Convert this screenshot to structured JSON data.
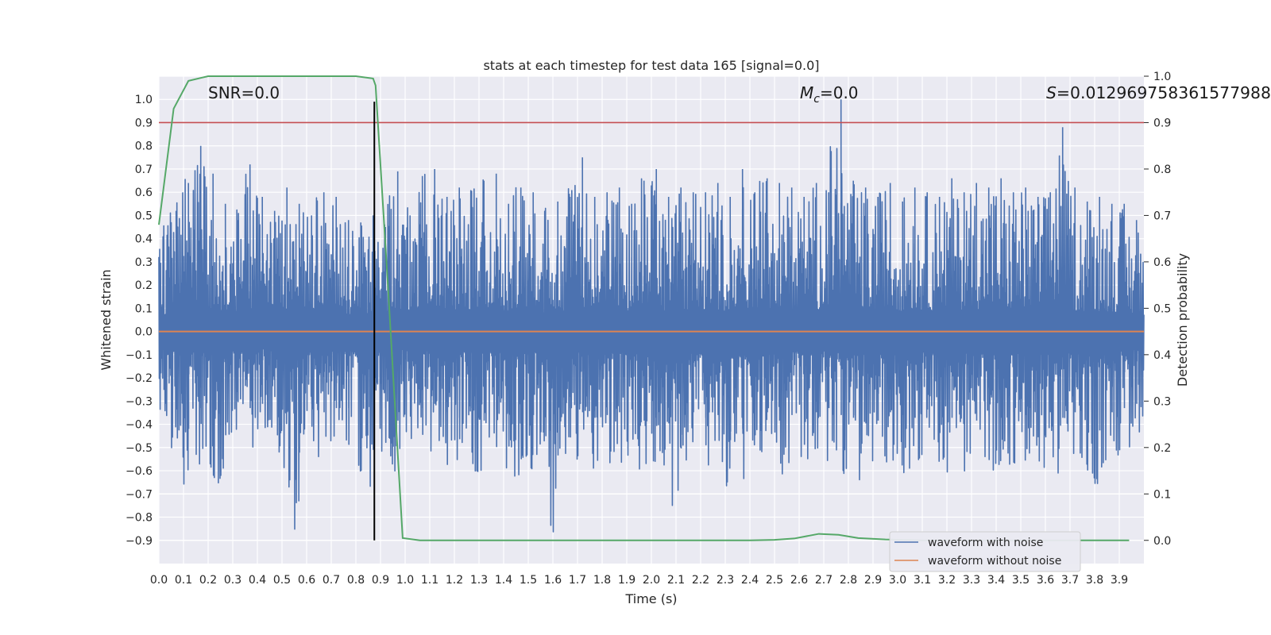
{
  "chart_data": {
    "type": "line",
    "title": "stats at each timestep for test data 165 [signal=0.0]",
    "xlabel": "Time (s)",
    "ylabel": "Whitened strain",
    "y2label": "Detection probability",
    "xlim": [
      0.0,
      4.0
    ],
    "ylim": [
      -1.0,
      1.1
    ],
    "y2lim": [
      -0.05,
      1.0
    ],
    "xticks": [
      "0.0",
      "0.1",
      "0.2",
      "0.3",
      "0.4",
      "0.5",
      "0.6",
      "0.7",
      "0.8",
      "0.9",
      "1.0",
      "1.1",
      "1.2",
      "1.3",
      "1.4",
      "1.5",
      "1.6",
      "1.7",
      "1.8",
      "1.9",
      "2.0",
      "2.1",
      "2.2",
      "2.3",
      "2.4",
      "2.5",
      "2.6",
      "2.7",
      "2.8",
      "2.9",
      "3.0",
      "3.1",
      "3.2",
      "3.3",
      "3.4",
      "3.5",
      "3.6",
      "3.7",
      "3.8",
      "3.9"
    ],
    "yticks": [
      "−0.9",
      "−0.8",
      "−0.7",
      "−0.6",
      "−0.5",
      "−0.4",
      "−0.3",
      "−0.2",
      "−0.1",
      "0.0",
      "0.1",
      "0.2",
      "0.3",
      "0.4",
      "0.5",
      "0.6",
      "0.7",
      "0.8",
      "0.9",
      "1.0"
    ],
    "y2ticks": [
      "0.0",
      "0.1",
      "0.2",
      "0.3",
      "0.4",
      "0.5",
      "0.6",
      "0.7",
      "0.8",
      "0.9",
      "1.0"
    ],
    "grid": true,
    "legend_placement": "lower-right",
    "annotations": {
      "snr": "SNR=0.0",
      "mc_symbol": "M",
      "mc_sub": "c",
      "mc_value": "=0.0",
      "s_symbol": "S",
      "s_value": "=0.012969758361577988"
    },
    "series": [
      {
        "name": "waveform with noise",
        "color": "#4c72b0",
        "note_sample": "dense noise trace, roughly within ±0.5 with spikes",
        "x": [
          0.0,
          0.05,
          0.1,
          0.15,
          0.2,
          0.25,
          0.3,
          0.35,
          0.4,
          0.45,
          0.5,
          0.55,
          0.6,
          0.65,
          0.7,
          0.75,
          0.8,
          0.85,
          0.9,
          0.95,
          1.0,
          1.05,
          1.1,
          1.15,
          1.2,
          1.25,
          1.3,
          1.35,
          1.4,
          1.45,
          1.5,
          1.55,
          1.6,
          1.65,
          1.7,
          1.75,
          1.8,
          1.85,
          1.9,
          1.95,
          2.0,
          2.05,
          2.1,
          2.15,
          2.2,
          2.25,
          2.3,
          2.35,
          2.4,
          2.45,
          2.5,
          2.55,
          2.6,
          2.65,
          2.7,
          2.75,
          2.8,
          2.85,
          2.9,
          2.95,
          3.0,
          3.05,
          3.1,
          3.15,
          3.2,
          3.25,
          3.3,
          3.35,
          3.4,
          3.45,
          3.5,
          3.55,
          3.6,
          3.65,
          3.7,
          3.75,
          3.8,
          3.85,
          3.9,
          3.95
        ],
        "y_max": [
          0.44,
          0.52,
          0.64,
          0.8,
          0.68,
          0.55,
          0.48,
          0.72,
          0.58,
          0.52,
          0.62,
          0.55,
          0.5,
          0.6,
          0.58,
          0.48,
          0.47,
          0.5,
          0.45,
          0.69,
          0.5,
          0.67,
          0.7,
          0.58,
          0.62,
          0.6,
          0.65,
          0.68,
          0.55,
          0.62,
          0.6,
          0.52,
          0.56,
          0.58,
          0.75,
          0.58,
          0.6,
          0.62,
          0.55,
          0.65,
          0.7,
          0.58,
          0.62,
          0.6,
          0.6,
          0.64,
          0.58,
          0.7,
          0.6,
          0.66,
          0.64,
          0.62,
          0.58,
          0.64,
          0.6,
          1.0,
          0.65,
          0.62,
          0.58,
          0.64,
          0.56,
          0.62,
          0.6,
          0.58,
          0.66,
          0.6,
          0.64,
          0.62,
          0.66,
          0.6,
          0.62,
          0.58,
          0.6,
          0.88,
          0.62,
          0.56,
          0.58,
          0.55,
          0.55,
          0.48
        ],
        "y_min": [
          -0.42,
          -0.52,
          -0.7,
          -0.55,
          -0.62,
          -0.67,
          -0.5,
          -0.55,
          -0.52,
          -0.47,
          -0.55,
          -0.87,
          -0.52,
          -0.58,
          -0.55,
          -0.55,
          -0.52,
          -0.85,
          -0.55,
          -0.64,
          -0.45,
          -0.55,
          -0.52,
          -0.58,
          -0.62,
          -0.55,
          -0.64,
          -0.56,
          -0.58,
          -0.66,
          -0.6,
          -0.58,
          -0.89,
          -0.55,
          -0.58,
          -0.62,
          -0.6,
          -0.58,
          -0.56,
          -0.64,
          -0.62,
          -0.66,
          -0.84,
          -0.58,
          -0.62,
          -0.6,
          -0.78,
          -0.7,
          -0.62,
          -0.58,
          -0.64,
          -0.6,
          -0.56,
          -0.58,
          -0.55,
          -0.6,
          -0.62,
          -0.66,
          -0.64,
          -0.58,
          -0.6,
          -0.62,
          -0.56,
          -0.58,
          -0.62,
          -0.58,
          -0.64,
          -0.6,
          -0.62,
          -0.58,
          -0.6,
          -0.76,
          -0.58,
          -0.62,
          -0.58,
          -0.66,
          -0.71,
          -0.58,
          -0.55,
          -0.52
        ]
      },
      {
        "name": "waveform without noise",
        "color": "#dd8452",
        "x": [
          0.0,
          4.0
        ],
        "y": [
          0.0,
          0.0
        ]
      },
      {
        "color": "#55a868",
        "axis": "y2",
        "x": [
          0.0,
          0.06,
          0.12,
          0.2,
          0.3,
          0.4,
          0.5,
          0.6,
          0.7,
          0.8,
          0.87,
          0.88,
          0.93,
          0.99,
          1.06,
          1.2,
          1.5,
          2.0,
          2.4,
          2.5,
          2.58,
          2.68,
          2.76,
          2.84,
          2.95,
          3.1,
          3.5,
          3.94
        ],
        "y": [
          0.68,
          0.93,
          0.99,
          1.0,
          1.0,
          1.0,
          1.0,
          1.0,
          1.0,
          1.0,
          0.995,
          0.98,
          0.55,
          0.005,
          0.0,
          0.0,
          0.0,
          0.0,
          0.0,
          0.001,
          0.004,
          0.014,
          0.012,
          0.005,
          0.002,
          0.0,
          0.0,
          0.0
        ]
      }
    ],
    "threshold_line": {
      "axis": "y2",
      "value": 0.9,
      "color": "#c44e52"
    },
    "marker_line": {
      "x": 0.875,
      "y_from": -0.9,
      "y_to": 0.99,
      "color": "#000000"
    }
  }
}
